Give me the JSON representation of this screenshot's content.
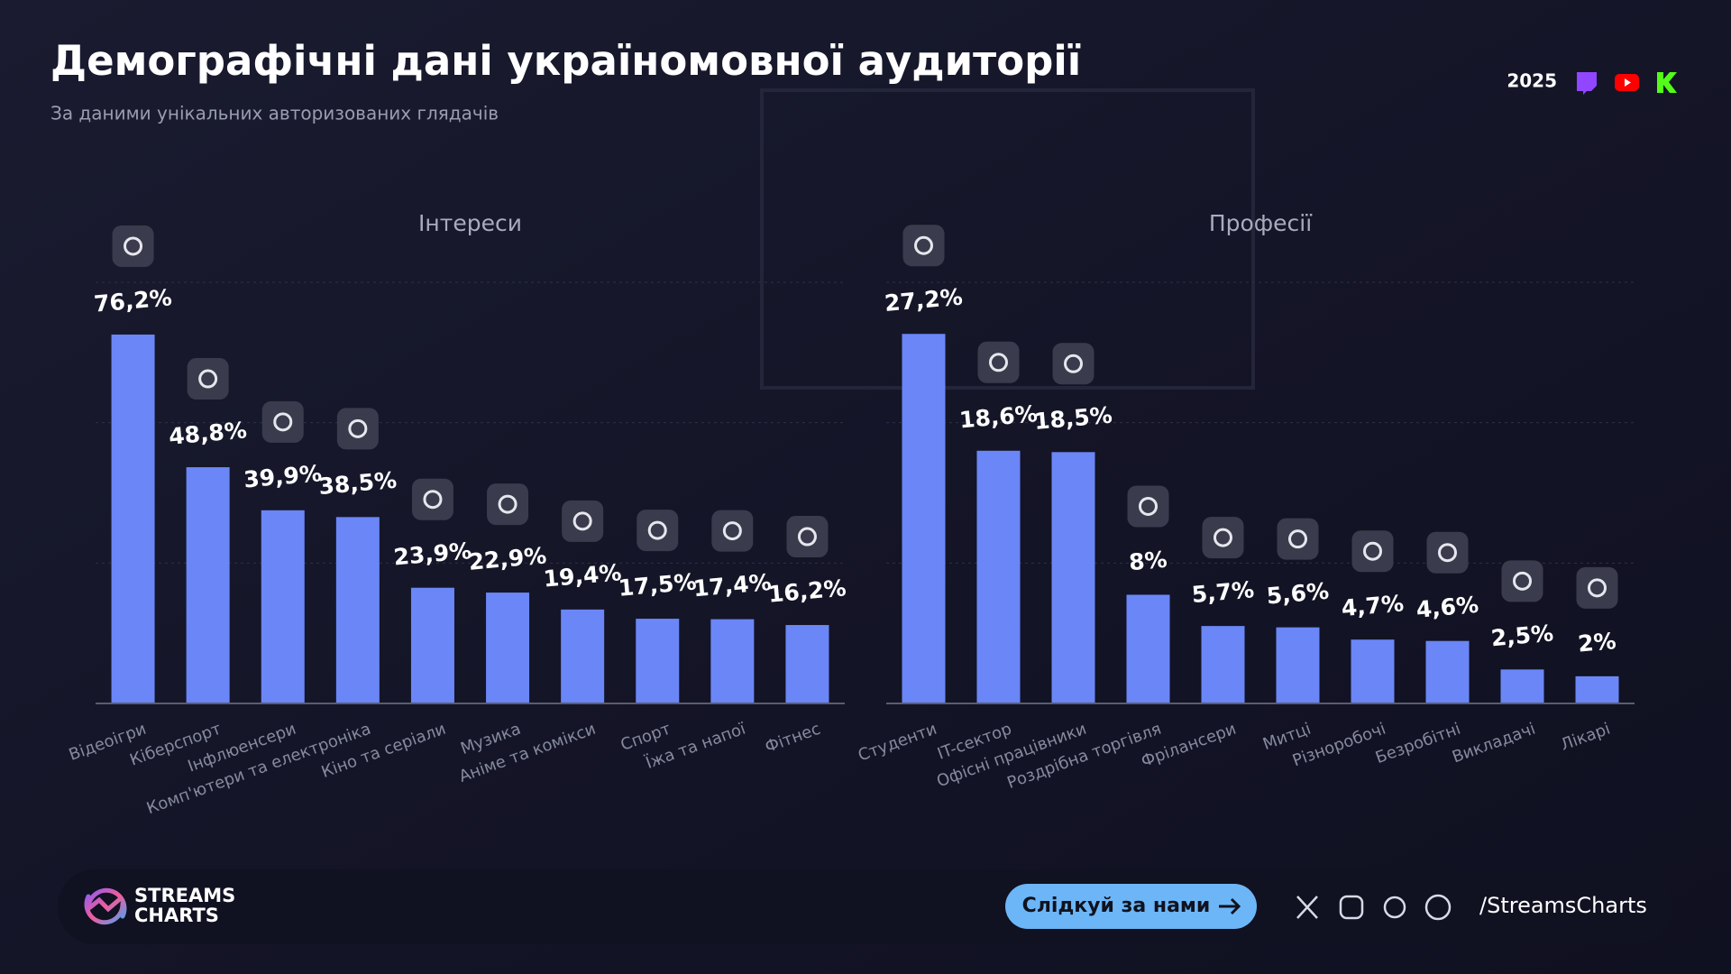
{
  "header": {
    "title": "Демографічні дані україномовної аудиторії",
    "subtitle": "За даними унікальних авторизованих глядачів",
    "year": "2025"
  },
  "chart_data": [
    {
      "type": "bar",
      "title": "Інтереси",
      "color": "#6b86f7",
      "ylim": [
        0,
        87
      ],
      "categories": [
        "Відеоігри",
        "Кіберспорт",
        "Інфлюенсери",
        "Комп'ютери та електроніка",
        "Кіно та серіали",
        "Музика",
        "Аніме та комікси",
        "Спорт",
        "Їжа та напої",
        "Фітнес"
      ],
      "values": [
        76.2,
        48.8,
        39.9,
        38.5,
        23.9,
        22.9,
        19.4,
        17.5,
        17.4,
        16.2
      ],
      "value_labels": [
        "76,2%",
        "48,8%",
        "39,9%",
        "38,5%",
        "23,9%",
        "22,9%",
        "19,4%",
        "17,5%",
        "17,4%",
        "16,2%"
      ]
    },
    {
      "type": "bar",
      "title": "Професії",
      "color": "#6b86f7",
      "ylim": [
        0,
        31
      ],
      "categories": [
        "Студенти",
        "IT-сектор",
        "Офісні працівники",
        "Роздрібна торгівля",
        "Фрілансери",
        "Митці",
        "Різноробочі",
        "Безробітні",
        "Викладачі",
        "Лікарі"
      ],
      "values": [
        27.2,
        18.6,
        18.5,
        8,
        5.7,
        5.6,
        4.7,
        4.6,
        2.5,
        2
      ],
      "value_labels": [
        "27,2%",
        "18,6%",
        "18,5%",
        "8%",
        "5,7%",
        "5,6%",
        "4,7%",
        "4,6%",
        "2,5%",
        "2%"
      ]
    }
  ],
  "footer": {
    "brand_line1": "STREAMS",
    "brand_line2": "CHARTS",
    "button": "Слідкуй за нами",
    "handle": "/StreamsCharts"
  }
}
